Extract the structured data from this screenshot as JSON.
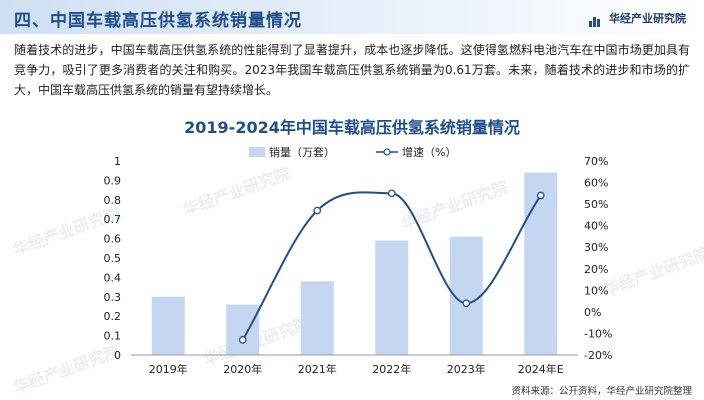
{
  "header": {
    "title": "四、中国车载高压供氢系统销量情况",
    "brand": "华经产业研究院"
  },
  "paragraph": "随着技术的进步，中国车载高压供氢系统的性能得到了显著提升，成本也逐步降低。这使得氢燃料电池汽车在中国市场更加具有竞争力，吸引了更多消费者的关注和购买。2023年我国车载高压供氢系统销量为0.61万套。未来，随着技术的进步和市场的扩大，中国车载高压供氢系统的销量有望持续增长。",
  "watermark": "华经产业研究院",
  "source": "资料来源：公开资料，华经产业研究院整理",
  "colors": {
    "bar": "#c5d7f0",
    "line": "#1f4e8c",
    "title": "#1f4e8c"
  },
  "chart_data": {
    "type": "bar",
    "title": "2019-2024年中国车载高压供氢系统销量情况",
    "categories": [
      "2019年",
      "2020年",
      "2021年",
      "2022年",
      "2023年",
      "2024年E"
    ],
    "series": [
      {
        "name": "销量（万套）",
        "type": "bar",
        "axis": "left",
        "values": [
          0.3,
          0.26,
          0.38,
          0.59,
          0.61,
          0.94
        ]
      },
      {
        "name": "增速（%）",
        "type": "line",
        "axis": "right",
        "values": [
          null,
          -13,
          47,
          55,
          4,
          54
        ]
      }
    ],
    "left_axis": {
      "ylim": [
        0,
        1
      ],
      "ticks": [
        "0",
        "0.1",
        "0.2",
        "0.3",
        "0.4",
        "0.5",
        "0.6",
        "0.7",
        "0.8",
        "0.9",
        "1"
      ]
    },
    "right_axis": {
      "ylim": [
        -20,
        70
      ],
      "ticks": [
        "-20%",
        "-10%",
        "0%",
        "10%",
        "20%",
        "30%",
        "40%",
        "50%",
        "60%",
        "70%"
      ]
    },
    "legend": "top-center",
    "grid": false
  }
}
